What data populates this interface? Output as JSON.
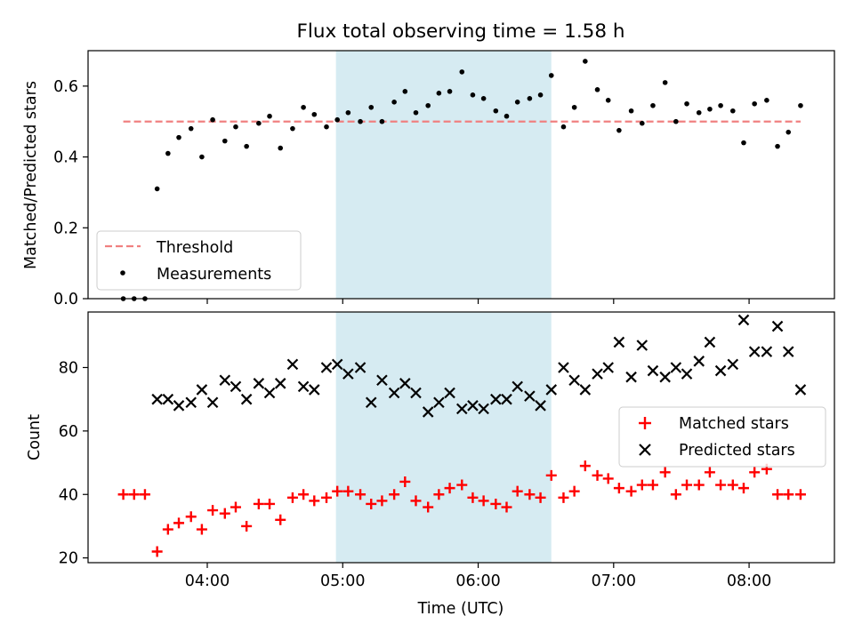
{
  "chart_data": {
    "title": "Flux total observing time = 1.58 h",
    "xlabel": "Time (UTC)",
    "x_tick_labels": [
      "04:00",
      "05:00",
      "06:00",
      "07:00",
      "08:00"
    ],
    "x_ticks_hours": [
      4,
      5,
      6,
      7,
      8
    ],
    "xlim_hours": [
      3.12,
      8.63
    ],
    "highlight_span_hours": [
      4.95,
      6.54
    ],
    "highlight_color": "#add8e6",
    "panels": [
      {
        "type": "scatter",
        "ylabel": "Matched/Predicted stars",
        "ylim": [
          0,
          0.7
        ],
        "yticks": [
          0.0,
          0.2,
          0.4,
          0.6
        ],
        "ytick_labels": [
          "0.0",
          "0.2",
          "0.4",
          "0.6"
        ],
        "legend_position": "lower-left",
        "threshold": {
          "name": "Threshold",
          "value": 0.5,
          "x_range": [
            3.38,
            8.38
          ],
          "color": "#f08080"
        },
        "series": [
          {
            "name": "Measurements",
            "color": "#000000",
            "marker": "dot",
            "x": [
              3.38,
              3.46,
              3.54,
              3.63,
              3.71,
              3.79,
              3.88,
              3.96,
              4.04,
              4.13,
              4.21,
              4.29,
              4.38,
              4.46,
              4.54,
              4.63,
              4.71,
              4.79,
              4.88,
              4.96,
              5.04,
              5.13,
              5.21,
              5.29,
              5.38,
              5.46,
              5.54,
              5.63,
              5.71,
              5.79,
              5.88,
              5.96,
              6.04,
              6.13,
              6.21,
              6.29,
              6.38,
              6.46,
              6.54,
              6.63,
              6.71,
              6.79,
              6.88,
              6.96,
              7.04,
              7.13,
              7.21,
              7.29,
              7.38,
              7.46,
              7.54,
              7.63,
              7.71,
              7.79,
              7.88,
              7.96,
              8.04,
              8.13,
              8.21,
              8.29,
              8.38
            ],
            "y": [
              0.0,
              0.0,
              0.0,
              0.31,
              0.41,
              0.455,
              0.48,
              0.4,
              0.505,
              0.445,
              0.485,
              0.43,
              0.495,
              0.515,
              0.425,
              0.48,
              0.54,
              0.52,
              0.485,
              0.505,
              0.525,
              0.5,
              0.54,
              0.5,
              0.555,
              0.585,
              0.525,
              0.545,
              0.58,
              0.585,
              0.64,
              0.575,
              0.565,
              0.53,
              0.515,
              0.555,
              0.565,
              0.575,
              0.63,
              0.485,
              0.54,
              0.67,
              0.59,
              0.56,
              0.475,
              0.53,
              0.495,
              0.545,
              0.61,
              0.5,
              0.55,
              0.525,
              0.535,
              0.545,
              0.53,
              0.44,
              0.55,
              0.56,
              0.43,
              0.47,
              0.545
            ]
          }
        ]
      },
      {
        "type": "scatter",
        "ylabel": "Count",
        "ylim": [
          18.5,
          97.5
        ],
        "yticks": [
          20,
          40,
          60,
          80
        ],
        "ytick_labels": [
          "20",
          "40",
          "60",
          "80"
        ],
        "legend_position": "center-right",
        "series": [
          {
            "name": "Matched stars",
            "color": "#ff0000",
            "marker": "plus",
            "x": [
              3.38,
              3.46,
              3.54,
              3.63,
              3.71,
              3.79,
              3.88,
              3.96,
              4.04,
              4.13,
              4.21,
              4.29,
              4.38,
              4.46,
              4.54,
              4.63,
              4.71,
              4.79,
              4.88,
              4.96,
              5.04,
              5.13,
              5.21,
              5.29,
              5.38,
              5.46,
              5.54,
              5.63,
              5.71,
              5.79,
              5.88,
              5.96,
              6.04,
              6.13,
              6.21,
              6.29,
              6.38,
              6.46,
              6.54,
              6.63,
              6.71,
              6.79,
              6.88,
              6.96,
              7.04,
              7.13,
              7.21,
              7.29,
              7.38,
              7.46,
              7.54,
              7.63,
              7.71,
              7.79,
              7.88,
              7.96,
              8.04,
              8.13,
              8.21,
              8.29,
              8.38
            ],
            "y": [
              40,
              40,
              40,
              22,
              29,
              31,
              33,
              29,
              35,
              34,
              36,
              30,
              37,
              37,
              32,
              39,
              40,
              38,
              39,
              41,
              41,
              40,
              37,
              38,
              40,
              44,
              38,
              36,
              40,
              42,
              43,
              39,
              38,
              37,
              36,
              41,
              40,
              39,
              46,
              39,
              41,
              49,
              46,
              45,
              42,
              41,
              43,
              43,
              47,
              40,
              43,
              43,
              47,
              43,
              43,
              42,
              47,
              48,
              40,
              40,
              40
            ]
          },
          {
            "name": "Predicted stars",
            "color": "#000000",
            "marker": "x",
            "x": [
              3.63,
              3.71,
              3.79,
              3.88,
              3.96,
              4.04,
              4.13,
              4.21,
              4.29,
              4.38,
              4.46,
              4.54,
              4.63,
              4.71,
              4.79,
              4.88,
              4.96,
              5.04,
              5.13,
              5.21,
              5.29,
              5.38,
              5.46,
              5.54,
              5.63,
              5.71,
              5.79,
              5.88,
              5.96,
              6.04,
              6.13,
              6.21,
              6.29,
              6.38,
              6.46,
              6.54,
              6.63,
              6.71,
              6.79,
              6.88,
              6.96,
              7.04,
              7.13,
              7.21,
              7.29,
              7.38,
              7.46,
              7.54,
              7.63,
              7.71,
              7.79,
              7.88,
              7.96,
              8.04,
              8.13,
              8.21,
              8.29,
              8.38
            ],
            "y": [
              70,
              70,
              68,
              69,
              73,
              69,
              76,
              74,
              70,
              75,
              72,
              75,
              81,
              74,
              73,
              80,
              81,
              78,
              80,
              69,
              76,
              72,
              75,
              72,
              66,
              69,
              72,
              67,
              68,
              67,
              70,
              70,
              74,
              71,
              68,
              73,
              80,
              76,
              73,
              78,
              80,
              88,
              77,
              87,
              79,
              77,
              80,
              78,
              82,
              88,
              79,
              81,
              95,
              85,
              85,
              93,
              85,
              73
            ]
          }
        ]
      }
    ]
  }
}
